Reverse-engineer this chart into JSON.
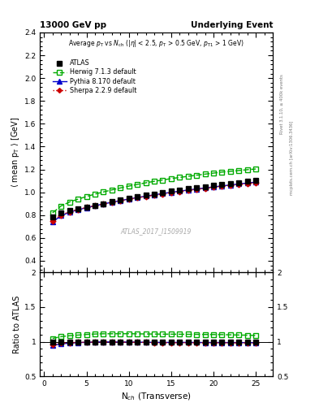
{
  "title_left": "13000 GeV pp",
  "title_right": "Underlying Event",
  "watermark": "ATLAS_2017_I1509919",
  "right_label_top": "Rivet 3.1.10, ≥ 400k events",
  "right_label_bottom": "mcplots.cern.ch [arXiv:1306.3436]",
  "ylabel_main": "⟨ mean p$_T$ ⟩ [GeV]",
  "ylabel_ratio": "Ratio to ATLAS",
  "xlabel": "N$_{ch}$ (Transverse)",
  "ylim_main": [
    0.3,
    2.4
  ],
  "ylim_ratio": [
    0.5,
    2.0
  ],
  "xlim": [
    -0.5,
    27
  ],
  "atlas_x": [
    1,
    2,
    3,
    4,
    5,
    6,
    7,
    8,
    9,
    10,
    11,
    12,
    13,
    14,
    15,
    16,
    17,
    18,
    19,
    20,
    21,
    22,
    23,
    24,
    25
  ],
  "atlas_y": [
    0.783,
    0.82,
    0.842,
    0.858,
    0.872,
    0.886,
    0.9,
    0.916,
    0.931,
    0.945,
    0.96,
    0.974,
    0.987,
    0.999,
    1.01,
    1.02,
    1.03,
    1.04,
    1.05,
    1.059,
    1.068,
    1.077,
    1.086,
    1.095,
    1.104
  ],
  "herwig_x": [
    1,
    2,
    3,
    4,
    5,
    6,
    7,
    8,
    9,
    10,
    11,
    12,
    13,
    14,
    15,
    16,
    17,
    18,
    19,
    20,
    21,
    22,
    23,
    24,
    25
  ],
  "herwig_y": [
    0.82,
    0.88,
    0.915,
    0.94,
    0.963,
    0.984,
    1.003,
    1.021,
    1.038,
    1.054,
    1.069,
    1.083,
    1.096,
    1.108,
    1.12,
    1.13,
    1.14,
    1.15,
    1.159,
    1.168,
    1.177,
    1.184,
    1.191,
    1.198,
    1.204
  ],
  "pythia_x": [
    1,
    2,
    3,
    4,
    5,
    6,
    7,
    8,
    9,
    10,
    11,
    12,
    13,
    14,
    15,
    16,
    17,
    18,
    19,
    20,
    21,
    22,
    23,
    24,
    25
  ],
  "pythia_y": [
    0.74,
    0.795,
    0.825,
    0.847,
    0.865,
    0.882,
    0.898,
    0.913,
    0.927,
    0.941,
    0.954,
    0.966,
    0.978,
    0.989,
    1.0,
    1.01,
    1.02,
    1.029,
    1.038,
    1.047,
    1.056,
    1.064,
    1.073,
    1.081,
    1.089
  ],
  "sherpa_x": [
    1,
    2,
    3,
    4,
    5,
    6,
    7,
    8,
    9,
    10,
    11,
    12,
    13,
    14,
    15,
    16,
    17,
    18,
    19,
    20,
    21,
    22,
    23,
    24,
    25
  ],
  "sherpa_y": [
    0.75,
    0.802,
    0.83,
    0.85,
    0.867,
    0.883,
    0.898,
    0.913,
    0.926,
    0.939,
    0.952,
    0.964,
    0.975,
    0.986,
    0.997,
    1.007,
    1.017,
    1.026,
    1.035,
    1.044,
    1.053,
    1.061,
    1.069,
    1.077,
    1.084
  ],
  "atlas_color": "#000000",
  "herwig_color": "#00aa00",
  "pythia_color": "#0000cc",
  "sherpa_color": "#cc0000"
}
